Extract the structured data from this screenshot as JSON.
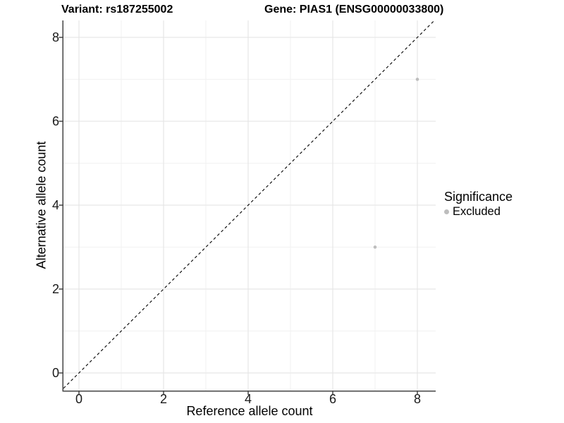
{
  "title": {
    "variant": "Variant: rs187255002",
    "gene": "Gene: PIAS1 (ENSG00000033800)"
  },
  "chart_data": {
    "type": "scatter",
    "title_left": "Variant: rs187255002",
    "title_right": "Gene: PIAS1 (ENSG00000033800)",
    "xlabel": "Reference allele count",
    "ylabel": "Alternative allele count",
    "xlim": [
      -0.3667,
      8.4333
    ],
    "ylim": [
      -0.42,
      8.4035
    ],
    "x_major_ticks": [
      0,
      2,
      4,
      6,
      8
    ],
    "y_major_ticks": [
      0,
      2,
      4,
      6,
      8
    ],
    "x_minor_ticks": [
      1,
      3,
      5,
      7
    ],
    "y_minor_ticks": [
      1,
      3,
      5,
      7
    ],
    "grid": "on",
    "identity_line": {
      "equation": "y = x",
      "style": "dashed",
      "color": "#000000"
    },
    "series": [
      {
        "name": "Excluded",
        "color": "#bdbdbd",
        "points": [
          {
            "x": 8,
            "y": 7
          },
          {
            "x": 7,
            "y": 3
          }
        ]
      }
    ],
    "legend": {
      "title": "Significance",
      "position": "right",
      "items": [
        {
          "label": "Excluded",
          "color": "#bdbdbd"
        }
      ]
    }
  },
  "colors": {
    "background": "#ffffff",
    "grid_major": "#e7e7e7",
    "grid_minor": "#f2f2f2",
    "axis_line": "#454545",
    "tick_mark": "#454545",
    "tick_label": "#1a1a1a",
    "point": "#bdbdbd",
    "identity_line": "#000000",
    "title_text": "#000000"
  }
}
